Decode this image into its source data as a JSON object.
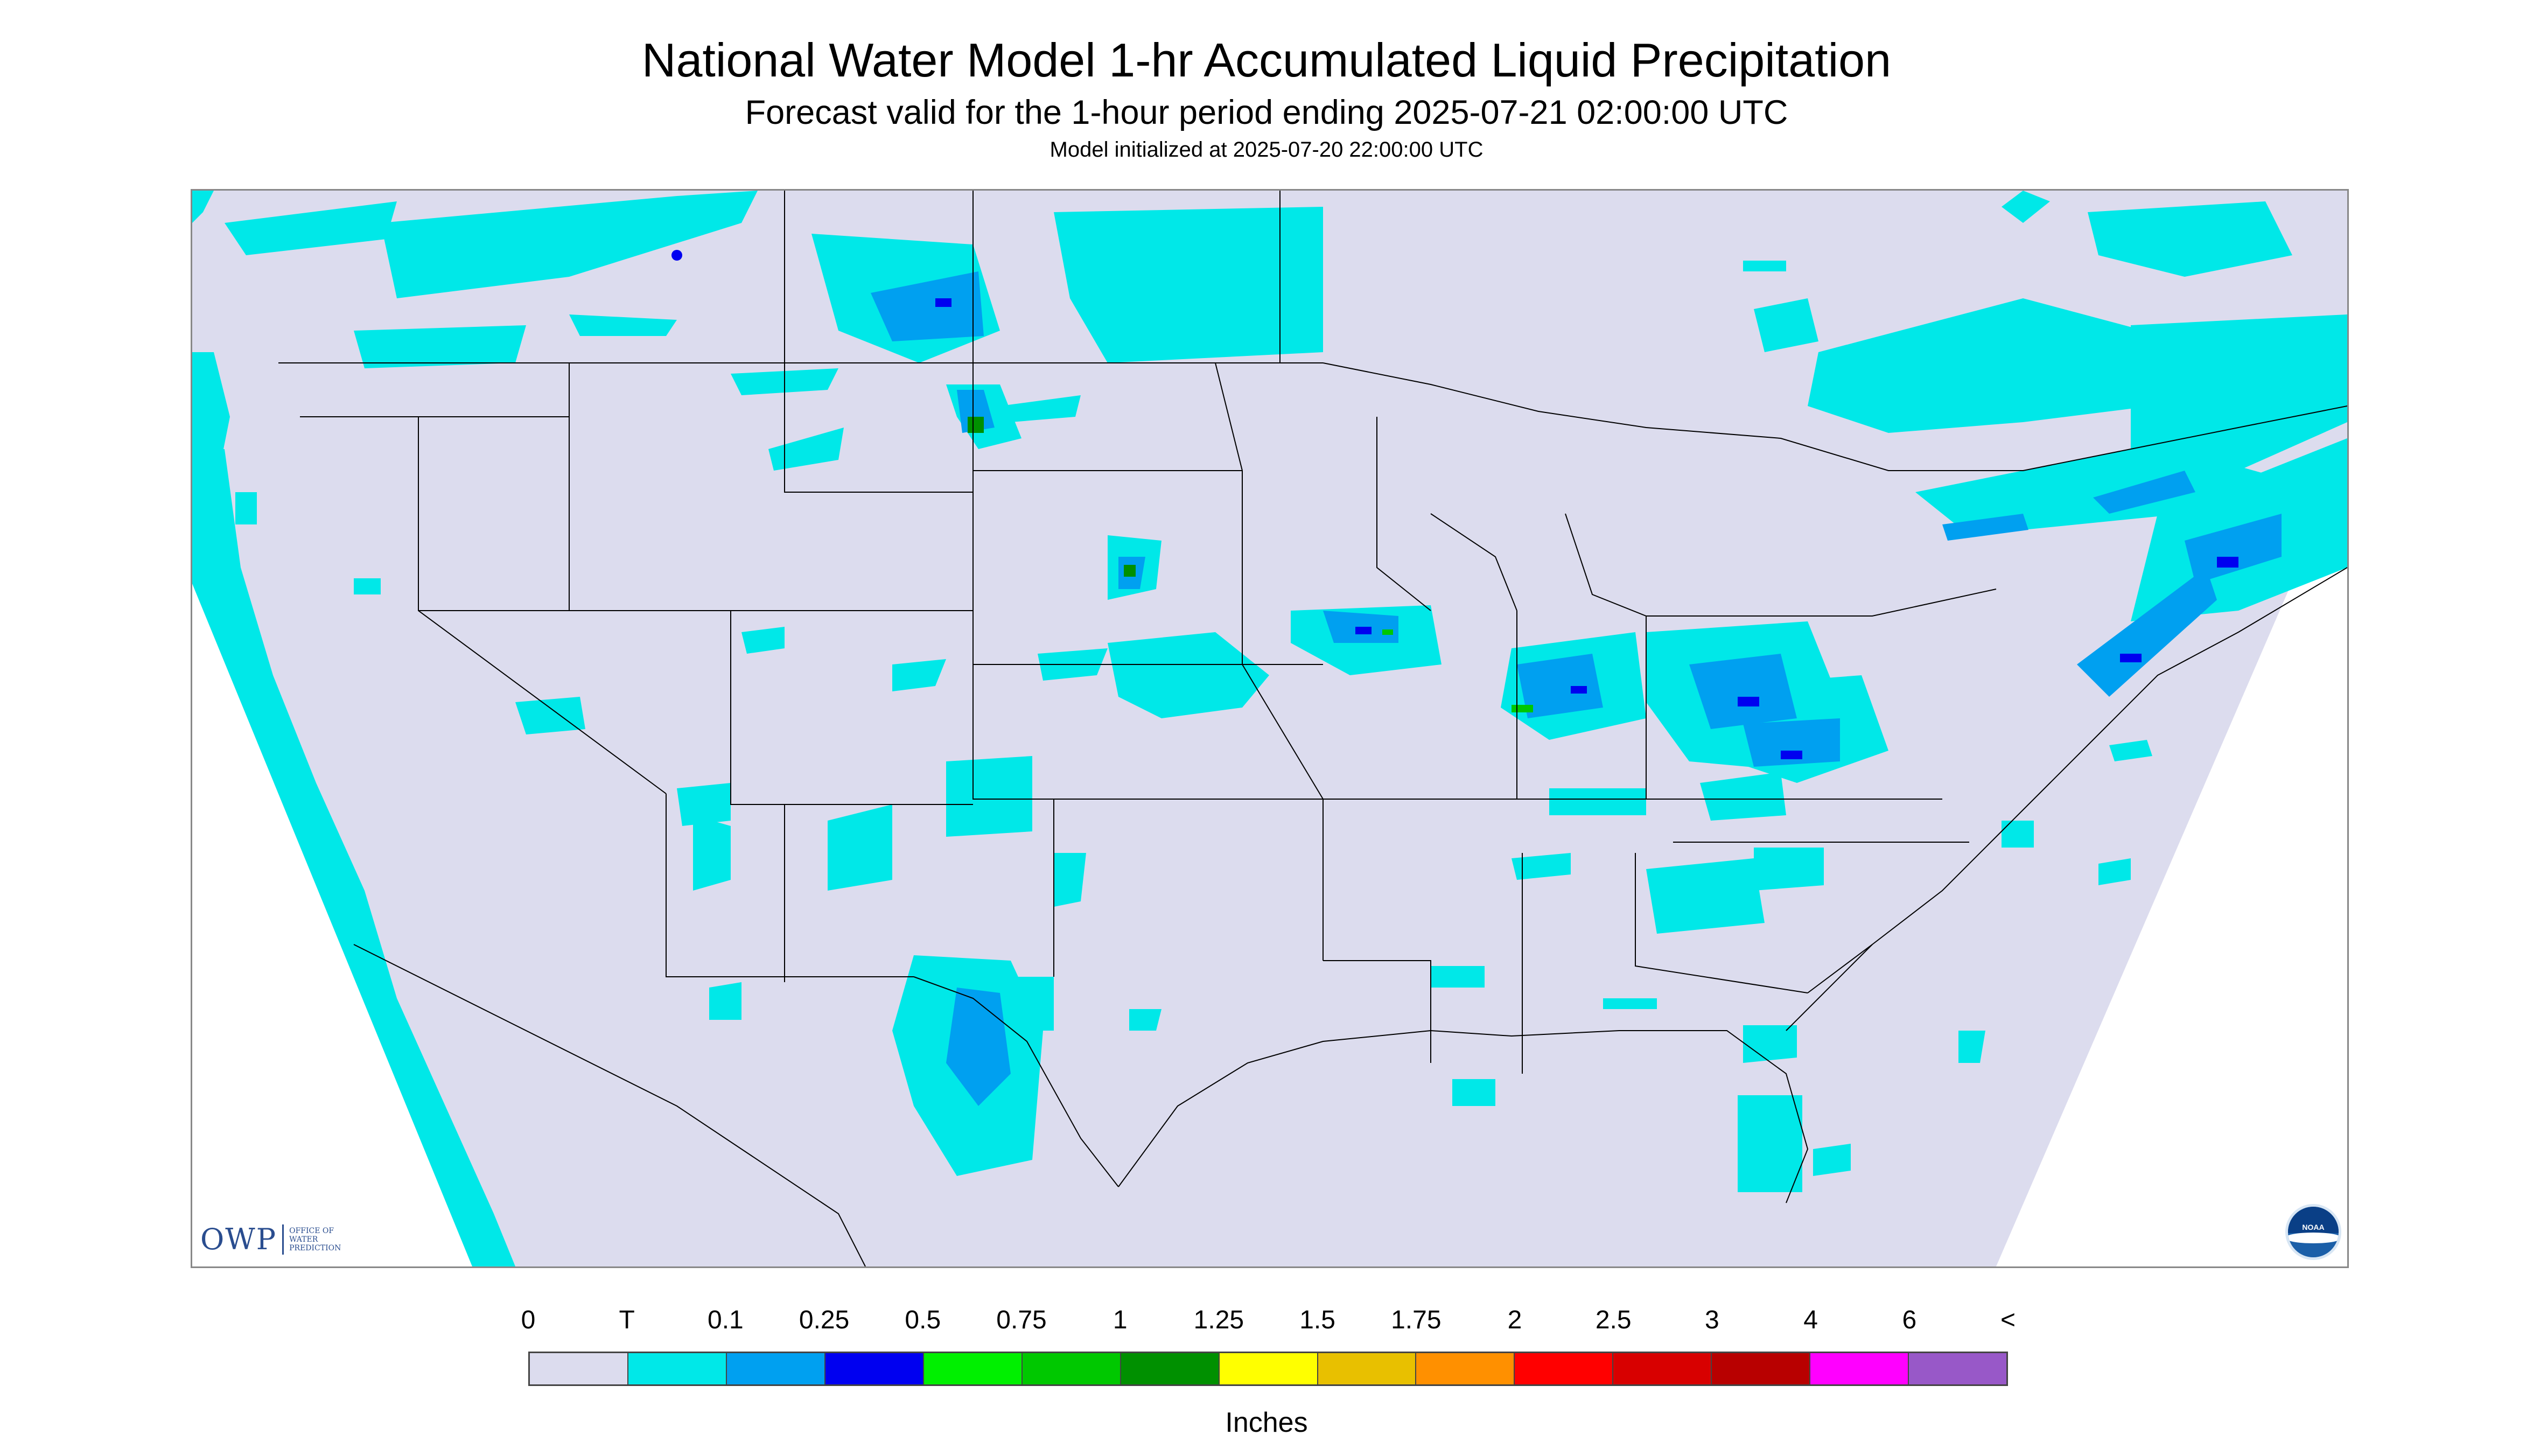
{
  "title": "National Water Model 1-hr Accumulated Liquid Precipitation",
  "subtitle": "Forecast valid for the 1-hour period ending 2025-07-21 02:00:00 UTC",
  "init_line": "Model initialized at 2025-07-20 22:00:00 UTC",
  "logo": {
    "owp_mark": "OWP",
    "owp_line1": "OFFICE OF",
    "owp_line2": "WATER",
    "owp_line3": "PREDICTION",
    "noaa_text": "NOAA"
  },
  "legend": {
    "labels": [
      "0",
      "T",
      "0.1",
      "0.25",
      "0.5",
      "0.75",
      "1",
      "1.25",
      "1.5",
      "1.75",
      "2",
      "2.5",
      "3",
      "4",
      "6",
      "<"
    ],
    "colors": [
      "#dcdcee",
      "#00e8e8",
      "#00a0f0",
      "#0000f0",
      "#00f000",
      "#00c800",
      "#009000",
      "#ffff00",
      "#e8c000",
      "#ff9000",
      "#ff0000",
      "#d80000",
      "#b80000",
      "#ff00ff",
      "#9858c8"
    ],
    "units": "Inches"
  },
  "colors": {
    "background": "#dcdcee",
    "trace": "#00e8e8",
    "light": "#00a0f0",
    "moderate": "#0000f0",
    "heavy": "#00c800",
    "border_lines": "#000000"
  }
}
